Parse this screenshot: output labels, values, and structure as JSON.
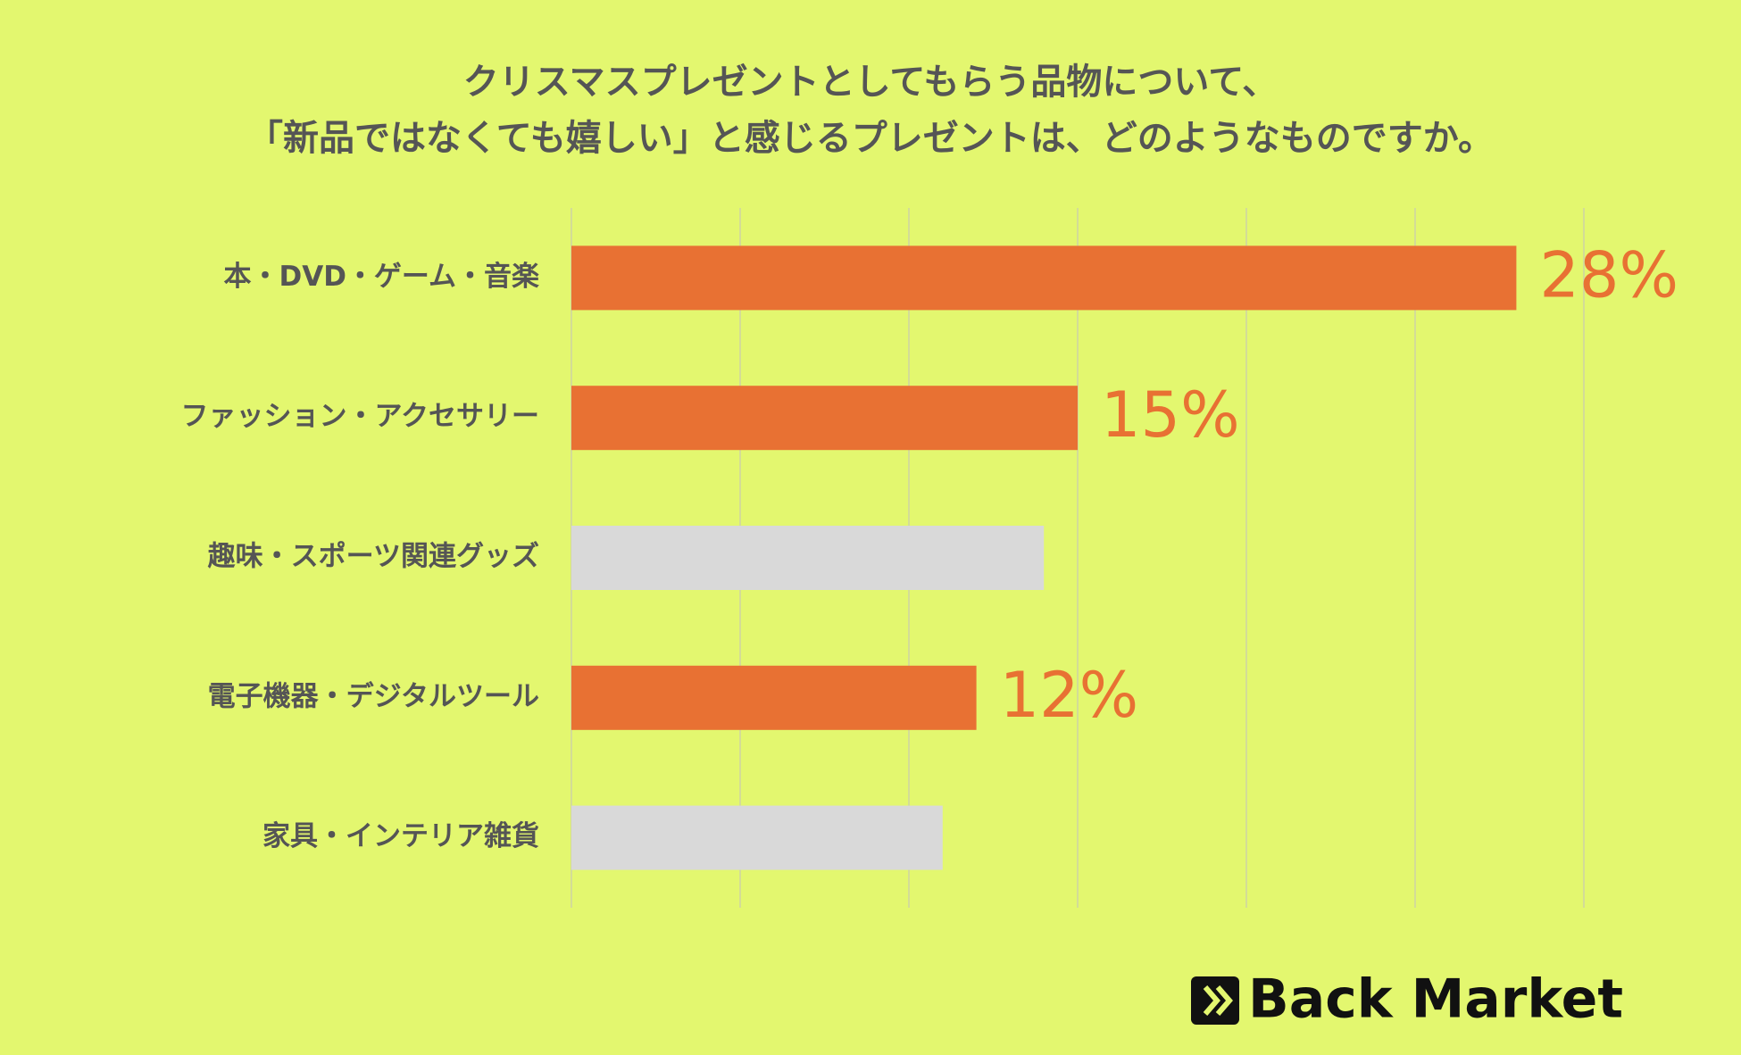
{
  "chart_data": {
    "type": "bar",
    "orientation": "horizontal",
    "title": [
      "クリスマスプレゼントとしてもらう品物について、",
      "「新品ではなくても嬉しい」と感じるプレゼントは、どのようなものですか。"
    ],
    "categories": [
      "本・DVD・ゲーム・音楽",
      "ファッション・アクセサリー",
      "趣味・スポーツ関連グッズ",
      "電子機器・デジタルツール",
      "家具・インテリア雑貨"
    ],
    "values": [
      28,
      15,
      14,
      12,
      11
    ],
    "value_labels": [
      "28%",
      "15%",
      null,
      "12%",
      null
    ],
    "colors": [
      "#e87133",
      "#e87133",
      "#d9d9d9",
      "#e87133",
      "#d9d9d9"
    ],
    "label_color": "#e87133",
    "xlim": [
      0,
      30
    ],
    "xticks": [
      0,
      5,
      10,
      15,
      20,
      25,
      30
    ],
    "grid": true,
    "logo": "Back Market"
  }
}
